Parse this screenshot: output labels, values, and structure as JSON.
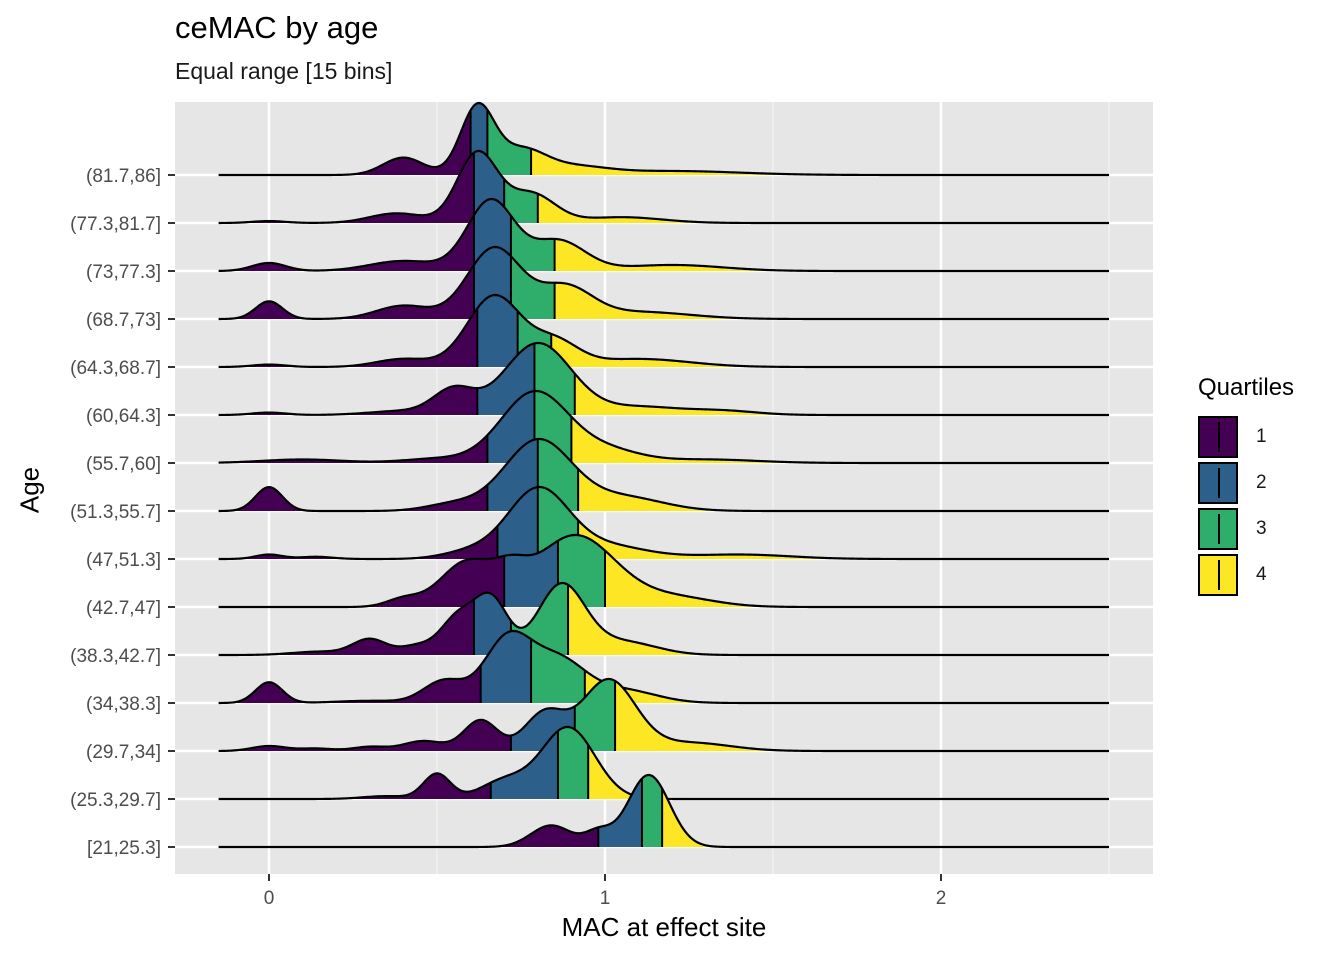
{
  "title": "ceMAC by age",
  "subtitle": "Equal range [15 bins]",
  "chart_data": {
    "type": "ridgeline",
    "title": "ceMAC by age",
    "subtitle": "Equal range [15 bins]",
    "xlabel": "MAC at effect site",
    "ylabel": "Age",
    "xlim": [
      -0.3,
      2.62
    ],
    "x_ticks": [
      0,
      1,
      2
    ],
    "grid": true,
    "legend": {
      "title": "Quartiles",
      "position": "right",
      "entries": [
        {
          "label": "1",
          "color": "#440154"
        },
        {
          "label": "2",
          "color": "#2D5F8B"
        },
        {
          "label": "3",
          "color": "#2EAE6A"
        },
        {
          "label": "4",
          "color": "#FDE725"
        }
      ]
    },
    "density_range": [
      -0.15,
      2.5
    ],
    "ridges": [
      {
        "label": "[21,25.3]",
        "quartiles": [
          0.98,
          1.11,
          1.17
        ],
        "peaks": [
          [
            1.13,
            0.062,
            1.0
          ],
          [
            0.84,
            0.06,
            0.3
          ],
          [
            0.98,
            0.04,
            0.2
          ]
        ]
      },
      {
        "label": "(25.3,29.7]",
        "quartiles": [
          0.66,
          0.86,
          0.95
        ],
        "peaks": [
          [
            0.89,
            0.08,
            1.0
          ],
          [
            0.5,
            0.04,
            0.35
          ],
          [
            0.7,
            0.07,
            0.25
          ],
          [
            0.35,
            0.07,
            0.04
          ]
        ]
      },
      {
        "label": "(29.7,34]",
        "quartiles": [
          0.72,
          0.91,
          1.03
        ],
        "peaks": [
          [
            1.01,
            0.08,
            0.85
          ],
          [
            0.82,
            0.06,
            0.45
          ],
          [
            0.63,
            0.05,
            0.37
          ],
          [
            0.46,
            0.06,
            0.12
          ],
          [
            0.0,
            0.05,
            0.06
          ],
          [
            0.3,
            0.05,
            0.05
          ],
          [
            0.14,
            0.05,
            0.03
          ],
          [
            1.25,
            0.12,
            0.1
          ]
        ]
      },
      {
        "label": "(34,38.3]",
        "quartiles": [
          0.63,
          0.78,
          0.94
        ],
        "peaks": [
          [
            0.71,
            0.07,
            0.58
          ],
          [
            0.0,
            0.04,
            0.19
          ],
          [
            0.86,
            0.08,
            0.38
          ],
          [
            0.52,
            0.06,
            0.2
          ],
          [
            1.05,
            0.1,
            0.12
          ],
          [
            0.3,
            0.1,
            0.02
          ]
        ]
      },
      {
        "label": "(38.3,42.7]",
        "quartiles": [
          0.61,
          0.72,
          0.89
        ],
        "peaks": [
          [
            0.87,
            0.07,
            0.62
          ],
          [
            0.66,
            0.05,
            0.5
          ],
          [
            0.56,
            0.05,
            0.32
          ],
          [
            0.3,
            0.05,
            0.14
          ],
          [
            0.44,
            0.05,
            0.08
          ],
          [
            1.05,
            0.1,
            0.12
          ],
          [
            0.15,
            0.08,
            0.03
          ]
        ]
      },
      {
        "label": "(42.7,47]",
        "quartiles": [
          0.7,
          0.86,
          1.0
        ],
        "peaks": [
          [
            0.91,
            0.12,
            0.72
          ],
          [
            0.59,
            0.08,
            0.45
          ],
          [
            0.4,
            0.05,
            0.08
          ],
          [
            1.2,
            0.12,
            0.1
          ],
          [
            0.72,
            0.05,
            0.2
          ]
        ]
      },
      {
        "label": "(47,51.3]",
        "quartiles": [
          0.68,
          0.8,
          0.92
        ],
        "peaks": [
          [
            0.8,
            0.09,
            0.92
          ],
          [
            0.0,
            0.04,
            0.06
          ],
          [
            0.14,
            0.05,
            0.03
          ],
          [
            1.0,
            0.12,
            0.18
          ],
          [
            0.6,
            0.08,
            0.1
          ],
          [
            1.4,
            0.15,
            0.06
          ]
        ]
      },
      {
        "label": "(51.3,55.7]",
        "quartiles": [
          0.65,
          0.8,
          0.92
        ],
        "peaks": [
          [
            0.8,
            0.1,
            1.0
          ],
          [
            0.0,
            0.04,
            0.34
          ],
          [
            1.05,
            0.12,
            0.2
          ],
          [
            0.55,
            0.08,
            0.1
          ]
        ]
      },
      {
        "label": "(55.7,60]",
        "quartiles": [
          0.65,
          0.79,
          0.9
        ],
        "peaks": [
          [
            0.79,
            0.1,
            1.0
          ],
          [
            0.1,
            0.12,
            0.05
          ],
          [
            1.0,
            0.1,
            0.18
          ],
          [
            0.5,
            0.1,
            0.06
          ],
          [
            1.3,
            0.15,
            0.05
          ]
        ]
      },
      {
        "label": "(60,64.3]",
        "quartiles": [
          0.62,
          0.79,
          0.91
        ],
        "peaks": [
          [
            0.8,
            0.1,
            0.88
          ],
          [
            0.55,
            0.06,
            0.3
          ],
          [
            1.1,
            0.12,
            0.1
          ],
          [
            1.35,
            0.1,
            0.05
          ],
          [
            0.0,
            0.05,
            0.03
          ],
          [
            0.4,
            0.1,
            0.05
          ]
        ]
      },
      {
        "label": "(64.3,68.7]",
        "quartiles": [
          0.62,
          0.74,
          0.84
        ],
        "peaks": [
          [
            0.67,
            0.08,
            0.88
          ],
          [
            0.85,
            0.07,
            0.3
          ],
          [
            0.4,
            0.08,
            0.1
          ],
          [
            0.0,
            0.05,
            0.03
          ],
          [
            1.1,
            0.15,
            0.1
          ]
        ]
      },
      {
        "label": "(68.7,73]",
        "quartiles": [
          0.61,
          0.72,
          0.85
        ],
        "peaks": [
          [
            0.67,
            0.08,
            0.8
          ],
          [
            0.0,
            0.04,
            0.2
          ],
          [
            0.88,
            0.08,
            0.35
          ],
          [
            0.4,
            0.08,
            0.15
          ],
          [
            1.1,
            0.15,
            0.08
          ]
        ]
      },
      {
        "label": "(73,77.3]",
        "quartiles": [
          0.61,
          0.72,
          0.85
        ],
        "peaks": [
          [
            0.66,
            0.07,
            0.7
          ],
          [
            0.0,
            0.05,
            0.08
          ],
          [
            0.86,
            0.08,
            0.3
          ],
          [
            0.4,
            0.1,
            0.1
          ],
          [
            1.2,
            0.15,
            0.06
          ]
        ]
      },
      {
        "label": "(77.3,81.7]",
        "quartiles": [
          0.61,
          0.7,
          0.8
        ],
        "peaks": [
          [
            0.62,
            0.06,
            0.72
          ],
          [
            0.78,
            0.07,
            0.3
          ],
          [
            0.38,
            0.08,
            0.1
          ],
          [
            0.0,
            0.05,
            0.02
          ],
          [
            1.05,
            0.12,
            0.06
          ]
        ]
      },
      {
        "label": "(81.7,86]",
        "quartiles": [
          0.6,
          0.65,
          0.78
        ],
        "peaks": [
          [
            0.62,
            0.05,
            0.85
          ],
          [
            0.75,
            0.07,
            0.3
          ],
          [
            0.4,
            0.06,
            0.22
          ],
          [
            0.9,
            0.1,
            0.1
          ],
          [
            1.2,
            0.2,
            0.05
          ]
        ]
      }
    ]
  }
}
